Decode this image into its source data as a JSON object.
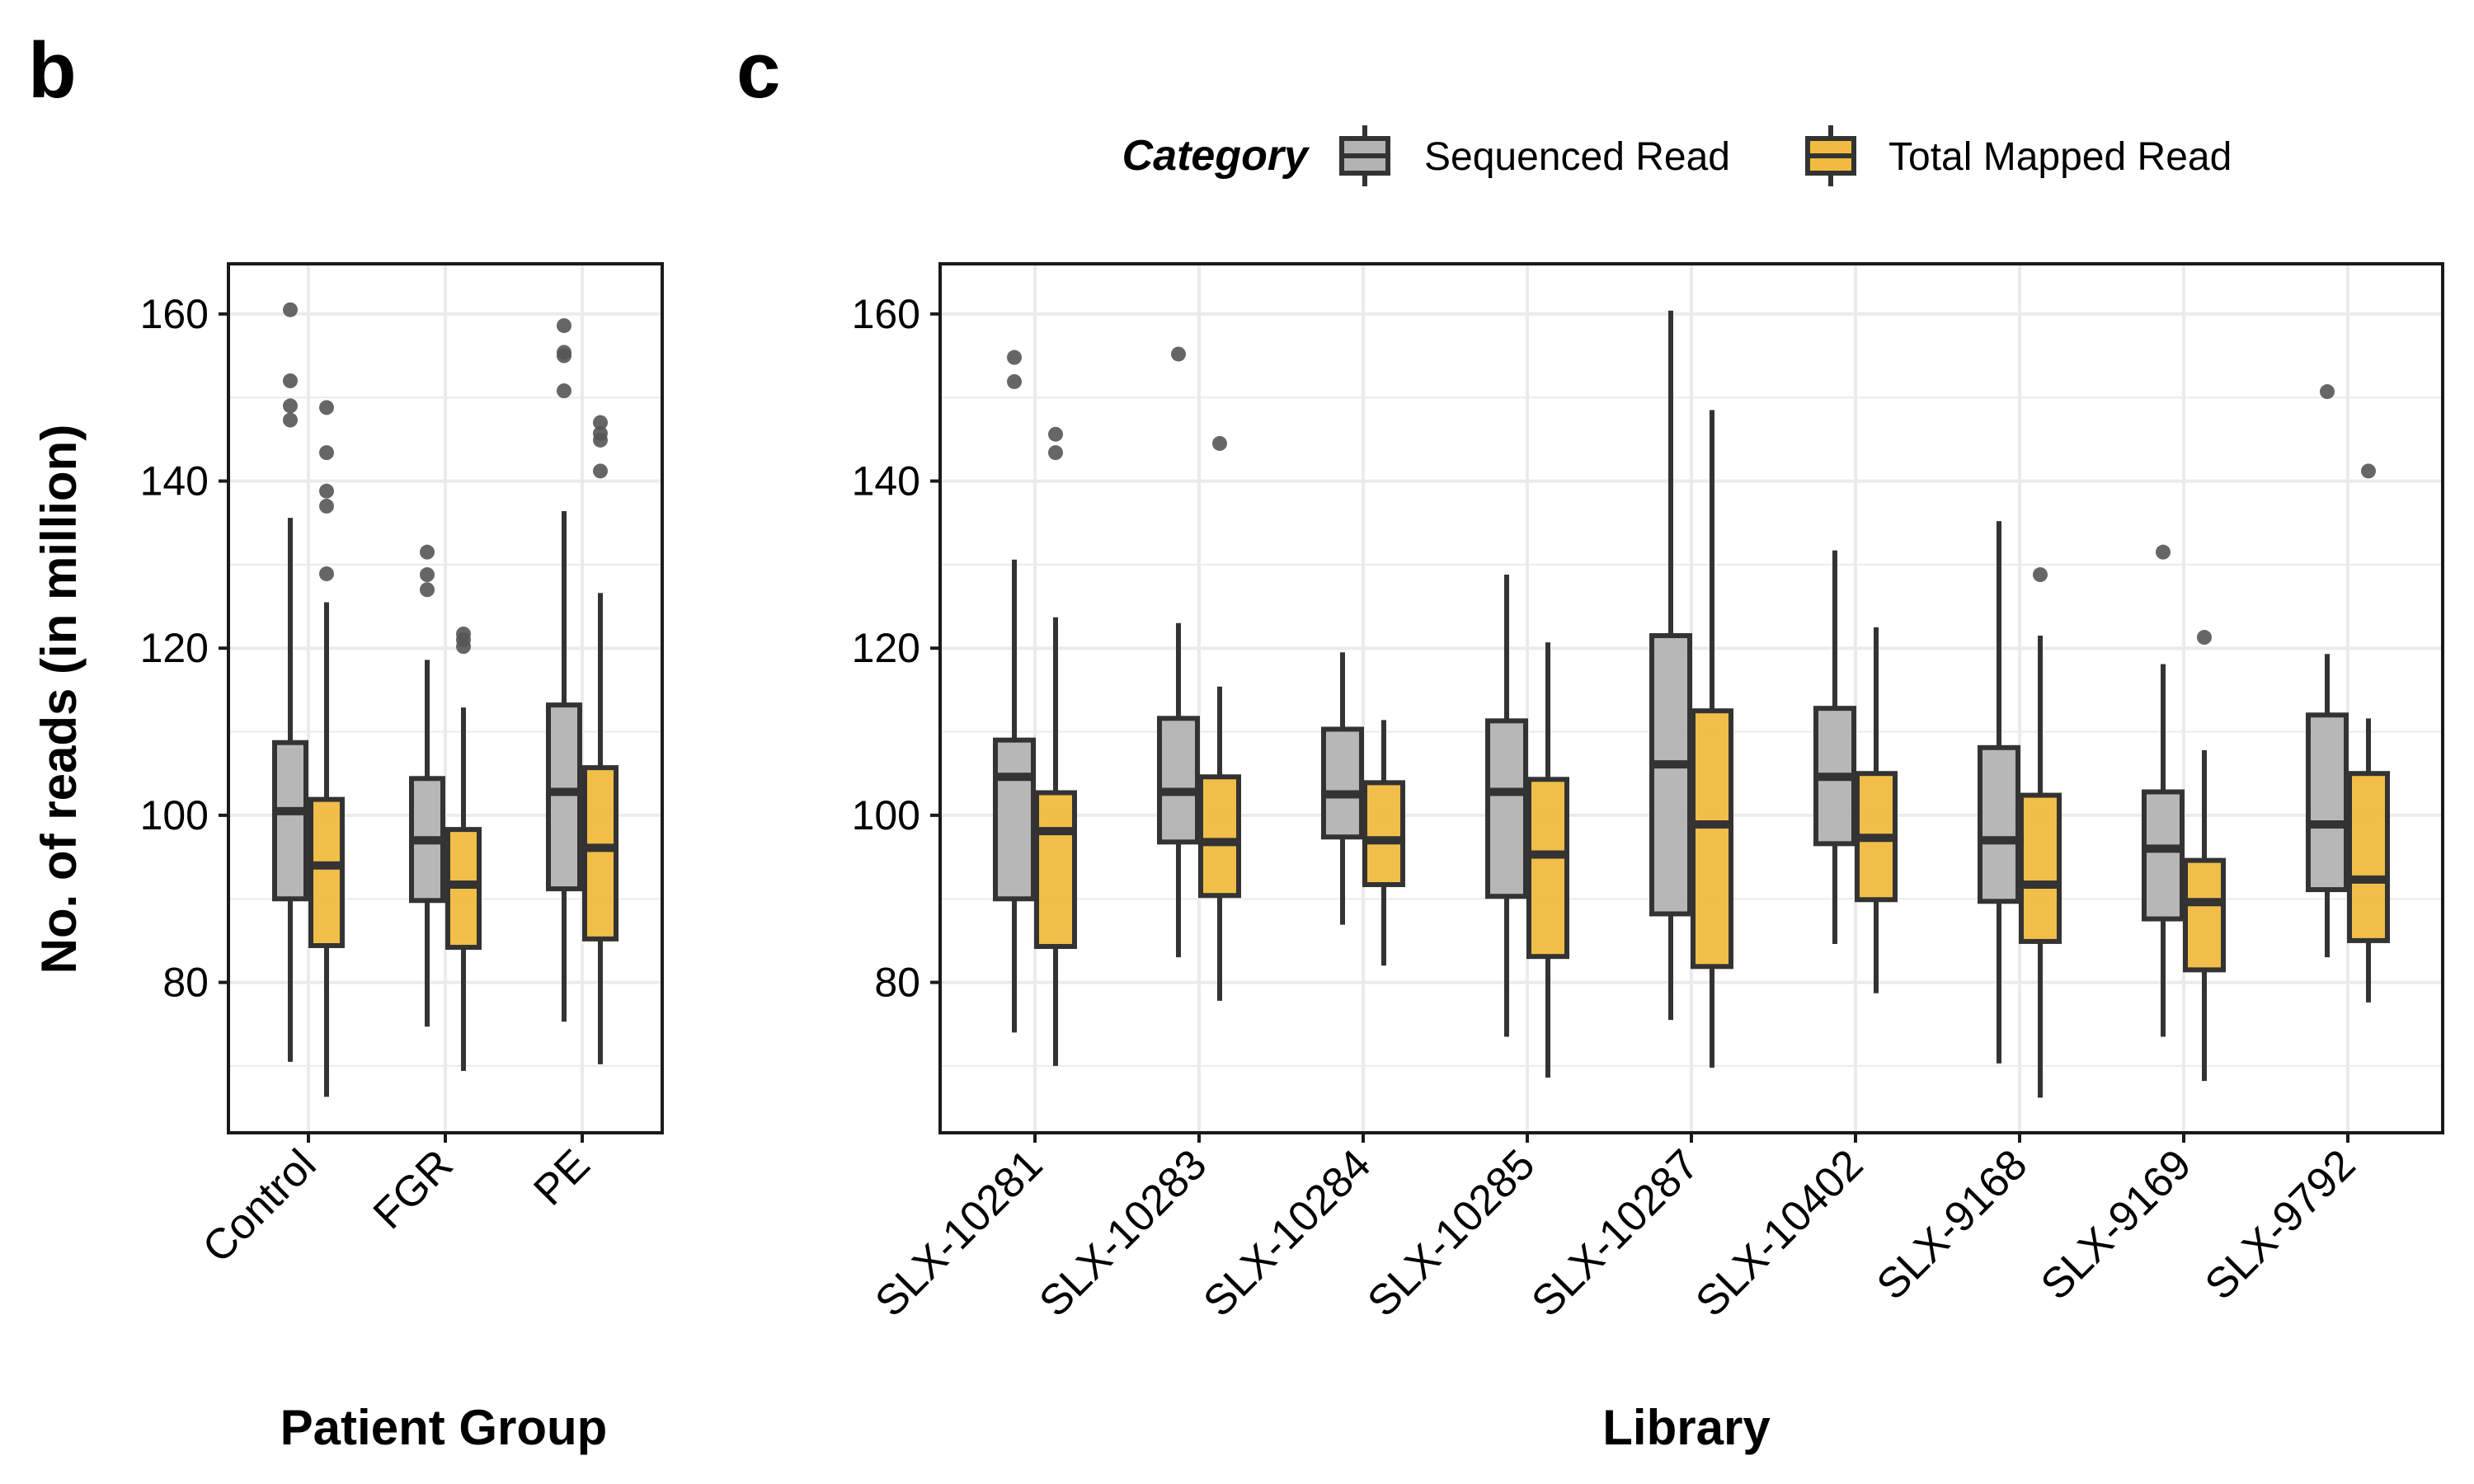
{
  "panels": [
    {
      "letter": "b",
      "ylabel": "No. of reads (in million)",
      "xlabel": "Patient Group"
    },
    {
      "letter": "c",
      "ylabel": "",
      "xlabel": "Library"
    }
  ],
  "legend": {
    "title": "Category",
    "items": [
      {
        "label": "Sequenced Read",
        "color": "#b3b3b3"
      },
      {
        "label": "Total Mapped Read",
        "color": "#f0bb3f"
      }
    ]
  },
  "colors": {
    "box_stroke": "#333333",
    "outlier": "#555555",
    "grid": "#ebebeb",
    "panel_border": "#1a1a1a"
  },
  "chart_data": [
    {
      "type": "box",
      "panel": "b",
      "title": "",
      "xlabel": "Patient Group",
      "ylabel": "No. of reads (in million)",
      "ylim": [
        62,
        166
      ],
      "yticks": [
        80,
        100,
        120,
        140,
        160
      ],
      "grid": true,
      "legend_position": "top",
      "categories": [
        "Control",
        "FGR",
        "PE"
      ],
      "series": [
        {
          "name": "Sequenced Read",
          "boxes": [
            {
              "whisker_low": 70.5,
              "q1": 90.0,
              "median": 100.5,
              "q3": 108.7,
              "whisker_high": 135.6,
              "outliers": [
                160.5,
                152.0,
                149.0,
                147.3
              ]
            },
            {
              "whisker_low": 74.7,
              "q1": 89.8,
              "median": 97.0,
              "q3": 104.4,
              "whisker_high": 118.6,
              "outliers": [
                131.5,
                128.8,
                127.0
              ]
            },
            {
              "whisker_low": 75.3,
              "q1": 91.2,
              "median": 102.8,
              "q3": 113.2,
              "whisker_high": 136.4,
              "outliers": [
                158.6,
                155.4,
                155.0,
                150.8
              ]
            }
          ]
        },
        {
          "name": "Total Mapped Read",
          "boxes": [
            {
              "whisker_low": 66.3,
              "q1": 84.4,
              "median": 94.0,
              "q3": 101.9,
              "whisker_high": 125.5,
              "outliers": [
                148.8,
                143.4,
                138.8,
                137.0,
                128.9
              ]
            },
            {
              "whisker_low": 69.4,
              "q1": 84.2,
              "median": 91.7,
              "q3": 98.3,
              "whisker_high": 112.9,
              "outliers": [
                121.7,
                121.0,
                120.2
              ]
            },
            {
              "whisker_low": 70.2,
              "q1": 85.2,
              "median": 96.1,
              "q3": 105.7,
              "whisker_high": 126.6,
              "outliers": [
                147.0,
                145.7,
                144.9,
                141.2
              ]
            }
          ]
        }
      ]
    },
    {
      "type": "box",
      "panel": "c",
      "title": "",
      "xlabel": "Library",
      "ylabel": "",
      "ylim": [
        62,
        166
      ],
      "yticks": [
        80,
        100,
        120,
        140,
        160
      ],
      "grid": true,
      "legend_position": "top",
      "categories": [
        "SLX-10281",
        "SLX-10283",
        "SLX-10284",
        "SLX-10285",
        "SLX-10287",
        "SLX-10402",
        "SLX-9168",
        "SLX-9169",
        "SLX-9792"
      ],
      "series": [
        {
          "name": "Sequenced Read",
          "boxes": [
            {
              "whisker_low": 74.0,
              "q1": 90.0,
              "median": 104.6,
              "q3": 109.0,
              "whisker_high": 130.6,
              "outliers": [
                154.8,
                151.9
              ]
            },
            {
              "whisker_low": 83.0,
              "q1": 96.8,
              "median": 102.8,
              "q3": 111.6,
              "whisker_high": 123.0,
              "outliers": [
                155.2
              ]
            },
            {
              "whisker_low": 86.9,
              "q1": 97.4,
              "median": 102.5,
              "q3": 110.3,
              "whisker_high": 119.5,
              "outliers": []
            },
            {
              "whisker_low": 73.5,
              "q1": 90.3,
              "median": 102.8,
              "q3": 111.3,
              "whisker_high": 128.8,
              "outliers": []
            },
            {
              "whisker_low": 75.5,
              "q1": 88.2,
              "median": 106.1,
              "q3": 121.5,
              "whisker_high": 160.4,
              "outliers": []
            },
            {
              "whisker_low": 84.6,
              "q1": 96.6,
              "median": 104.6,
              "q3": 112.8,
              "whisker_high": 131.7,
              "outliers": []
            },
            {
              "whisker_low": 70.3,
              "q1": 89.7,
              "median": 97.0,
              "q3": 108.1,
              "whisker_high": 135.2,
              "outliers": []
            },
            {
              "whisker_low": 73.5,
              "q1": 87.6,
              "median": 96.0,
              "q3": 102.8,
              "whisker_high": 118.1,
              "outliers": [
                131.5
              ]
            },
            {
              "whisker_low": 83.0,
              "q1": 91.1,
              "median": 98.9,
              "q3": 112.0,
              "whisker_high": 119.3,
              "outliers": [
                150.7
              ]
            }
          ]
        },
        {
          "name": "Total Mapped Read",
          "boxes": [
            {
              "whisker_low": 70.0,
              "q1": 84.3,
              "median": 98.1,
              "q3": 102.7,
              "whisker_high": 123.7,
              "outliers": [
                145.6,
                143.4
              ]
            },
            {
              "whisker_low": 77.8,
              "q1": 90.4,
              "median": 96.8,
              "q3": 104.6,
              "whisker_high": 115.4,
              "outliers": [
                144.5
              ]
            },
            {
              "whisker_low": 82.0,
              "q1": 91.7,
              "median": 97.0,
              "q3": 103.9,
              "whisker_high": 111.4,
              "outliers": []
            },
            {
              "whisker_low": 68.6,
              "q1": 83.1,
              "median": 95.3,
              "q3": 104.3,
              "whisker_high": 120.7,
              "outliers": []
            },
            {
              "whisker_low": 69.8,
              "q1": 81.9,
              "median": 98.9,
              "q3": 112.5,
              "whisker_high": 148.5,
              "outliers": []
            },
            {
              "whisker_low": 78.7,
              "q1": 89.9,
              "median": 97.3,
              "q3": 105.0,
              "whisker_high": 122.5,
              "outliers": []
            },
            {
              "whisker_low": 66.2,
              "q1": 84.9,
              "median": 91.7,
              "q3": 102.4,
              "whisker_high": 121.5,
              "outliers": [
                128.8
              ]
            },
            {
              "whisker_low": 68.2,
              "q1": 81.5,
              "median": 89.6,
              "q3": 94.6,
              "whisker_high": 107.8,
              "outliers": [
                121.3
              ]
            },
            {
              "whisker_low": 77.6,
              "q1": 85.0,
              "median": 92.3,
              "q3": 105.0,
              "whisker_high": 111.6,
              "outliers": [
                141.2
              ]
            }
          ]
        }
      ]
    }
  ]
}
